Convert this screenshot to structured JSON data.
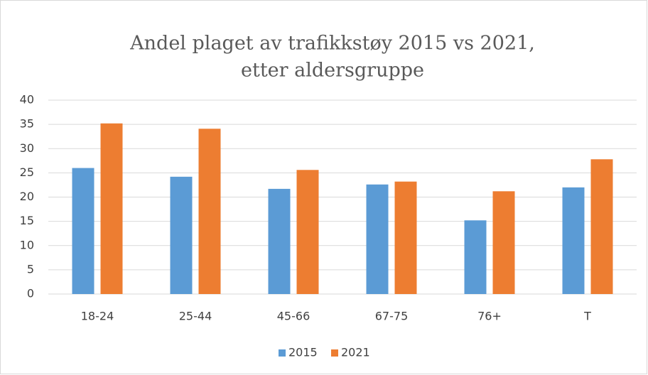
{
  "chart_data": {
    "type": "bar",
    "title": [
      "Andel plaget av trafikkstøy 2015 vs 2021,",
      "etter aldersgruppe"
    ],
    "categories": [
      "18-24",
      "25-44",
      "45-66",
      "67-75",
      "76+",
      "T"
    ],
    "series": [
      {
        "name": "2015",
        "color": "#5b9bd5",
        "values": [
          26.0,
          24.2,
          21.7,
          22.6,
          15.2,
          22.0
        ]
      },
      {
        "name": "2021",
        "color": "#ed7d31",
        "values": [
          35.2,
          34.1,
          25.6,
          23.2,
          21.2,
          27.8
        ]
      }
    ],
    "ylim": [
      0,
      40
    ],
    "yticks": [
      0,
      5,
      10,
      15,
      20,
      25,
      30,
      35,
      40
    ],
    "grid": true,
    "legend": "bottom"
  }
}
